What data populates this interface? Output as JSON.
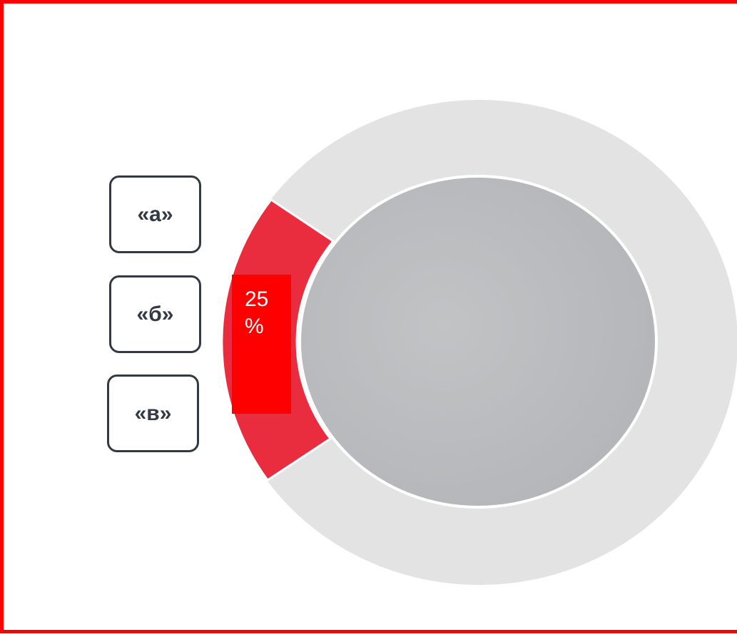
{
  "options": [
    "«а»",
    "«б»",
    "«в»"
  ],
  "segment_label": "25 %"
}
